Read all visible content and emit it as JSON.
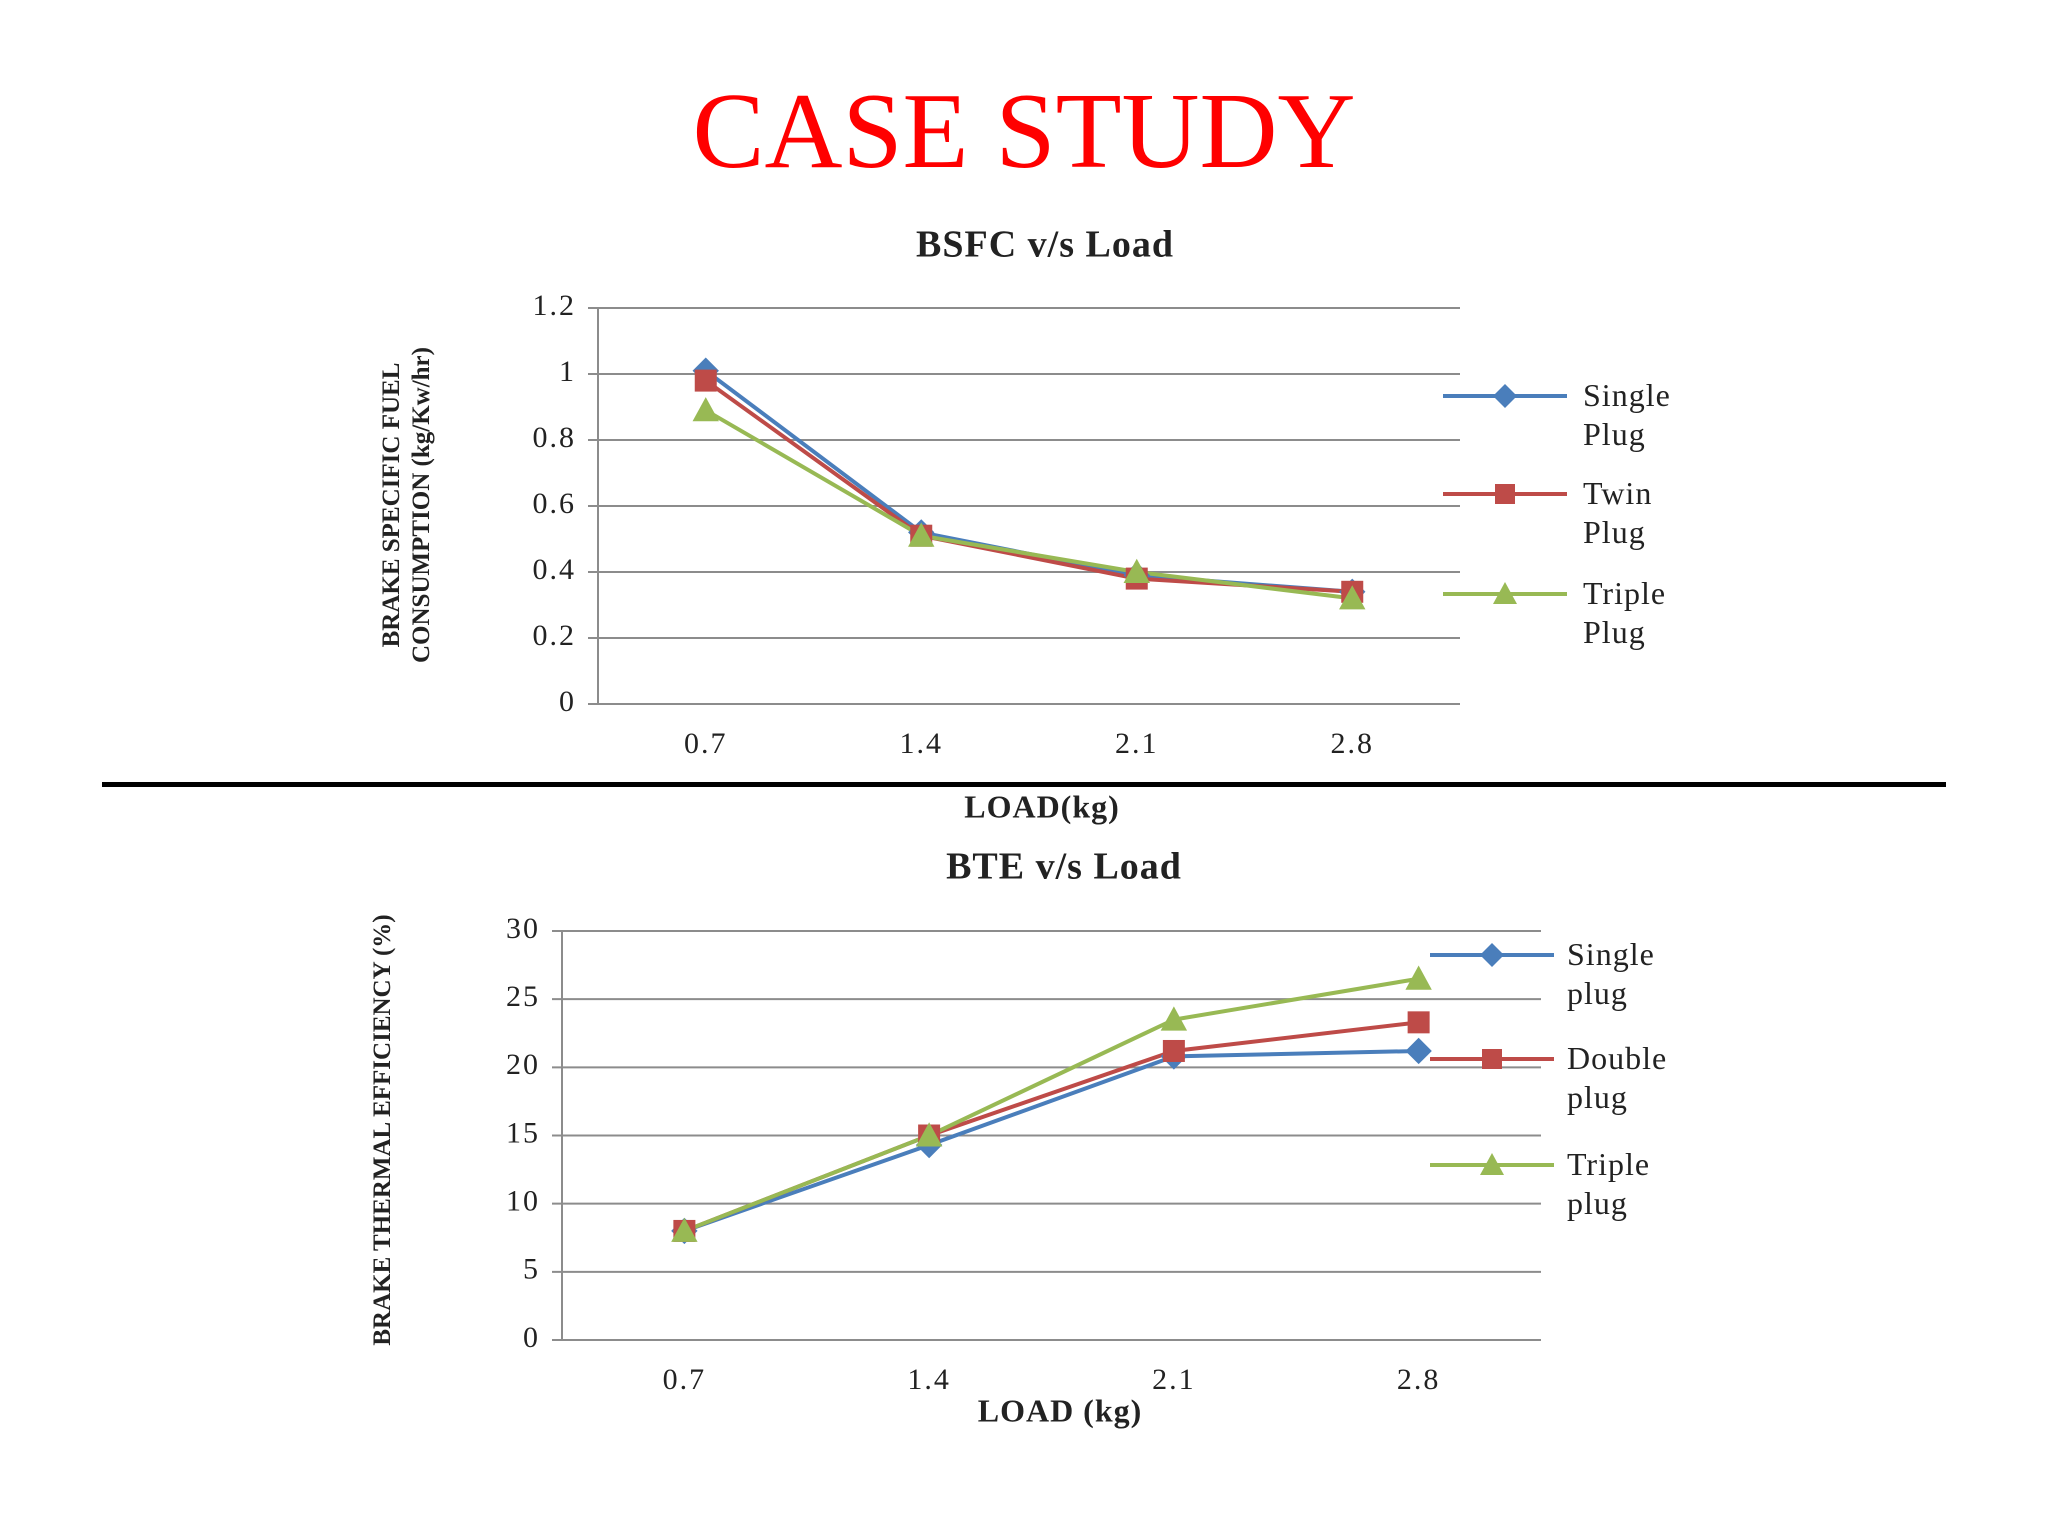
{
  "title": "CASE STUDY",
  "chart_data": [
    {
      "type": "line",
      "title": "BSFC v/s Load",
      "x_label": "LOAD(kg)",
      "y_label": "BRAKE SPECIFIC FUEL CONSUMPTION (kg/Kw/hr)",
      "categories": [
        "0.7",
        "1.4",
        "2.1",
        "2.8"
      ],
      "ylim": [
        0,
        1.2
      ],
      "yticks": [
        0,
        0.2,
        0.4,
        0.6,
        0.8,
        1,
        1.2
      ],
      "grid": true,
      "legend": "right",
      "series": [
        {
          "name": "Single Plug",
          "color": "#4a7ebb",
          "marker": "diamond",
          "values": [
            1.01,
            0.52,
            0.39,
            0.34
          ]
        },
        {
          "name": "Twin Plug",
          "color": "#be4b48",
          "marker": "square",
          "values": [
            0.98,
            0.51,
            0.38,
            0.34
          ]
        },
        {
          "name": "Triple Plug",
          "color": "#98b954",
          "marker": "triangle",
          "values": [
            0.89,
            0.51,
            0.4,
            0.32
          ]
        }
      ]
    },
    {
      "type": "line",
      "title": "BTE v/s Load",
      "x_label": "LOAD (kg)",
      "y_label": "BRAKE THERMAL EFFICIENCY (%)",
      "categories": [
        "0.7",
        "1.4",
        "2.1",
        "2.8"
      ],
      "ylim": [
        0,
        30
      ],
      "yticks": [
        0,
        5,
        10,
        15,
        20,
        25,
        30
      ],
      "grid": true,
      "legend": "right",
      "series": [
        {
          "name": "Single plug",
          "color": "#4a7ebb",
          "marker": "diamond",
          "values": [
            8.0,
            14.3,
            20.8,
            21.2
          ]
        },
        {
          "name": "Double plug",
          "color": "#be4b48",
          "marker": "square",
          "values": [
            8.0,
            15.0,
            21.2,
            23.3
          ]
        },
        {
          "name": "Triple plug",
          "color": "#98b954",
          "marker": "triangle",
          "values": [
            8.0,
            15.0,
            23.5,
            26.5
          ]
        }
      ]
    }
  ]
}
